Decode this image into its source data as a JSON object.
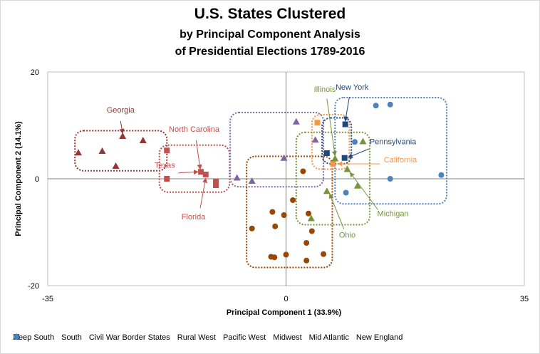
{
  "colors": {
    "deep_south": "#943634",
    "south": "#c0504d",
    "border": "#8064a2",
    "rural_west": "#974706",
    "pacific_west": "#f79646",
    "midwest": "#77933c",
    "mid_atlantic": "#1f497d",
    "new_england": "#4f81bd"
  },
  "chart_data": {
    "type": "scatter",
    "title": "U.S. States Clustered",
    "subtitle_line1": "by Principal Component Analysis",
    "subtitle_line2": "of Presidential Elections 1789-2016",
    "xlabel": "Principal Component 1 (33.9%)",
    "ylabel": "Principal Component 2 (14.1%)",
    "xlim": [
      -35,
      35
    ],
    "ylim": [
      -20,
      20
    ],
    "x_tick_labels": [
      "-35",
      "0",
      "35"
    ],
    "y_tick_labels": [
      "20",
      "0",
      "-20"
    ],
    "grid": false,
    "legend_position": "bottom",
    "series": [
      {
        "name": "Deep South",
        "marker": "triangle",
        "color_key": "deep_south",
        "points": [
          [
            -30.5,
            4.9
          ],
          [
            -27.0,
            5.2
          ],
          [
            -25.0,
            2.4
          ],
          [
            -24.0,
            8.0
          ],
          [
            -21.0,
            7.2
          ]
        ]
      },
      {
        "name": "South",
        "marker": "square",
        "color_key": "south",
        "points": [
          [
            -17.5,
            5.3
          ],
          [
            -17.5,
            0.0
          ],
          [
            -12.5,
            1.3
          ],
          [
            -11.8,
            0.8
          ],
          [
            -10.3,
            -0.5
          ],
          [
            -10.3,
            -1.2
          ]
        ]
      },
      {
        "name": "Civil War Border States",
        "marker": "triangle",
        "color_key": "border",
        "points": [
          [
            -7.2,
            0.2
          ],
          [
            -5.0,
            -0.4
          ],
          [
            -0.3,
            3.9
          ],
          [
            1.5,
            10.7
          ],
          [
            4.3,
            7.3
          ]
        ]
      },
      {
        "name": "Rural West",
        "marker": "circle",
        "color_key": "rural_west",
        "points": [
          [
            2.5,
            1.4
          ],
          [
            1.0,
            -4.0
          ],
          [
            -2.0,
            -6.2
          ],
          [
            -0.3,
            -6.8
          ],
          [
            3.3,
            -6.5
          ],
          [
            -5.0,
            -9.3
          ],
          [
            -1.6,
            -8.9
          ],
          [
            3.8,
            -9.8
          ],
          [
            3.0,
            -12.0
          ],
          [
            -2.2,
            -14.6
          ],
          [
            -1.7,
            -14.7
          ],
          [
            0.0,
            -14.2
          ],
          [
            5.5,
            -14.1
          ],
          [
            3.0,
            -15.3
          ]
        ]
      },
      {
        "name": "Pacific West",
        "marker": "square",
        "color_key": "pacific_west",
        "points": [
          [
            4.6,
            10.5
          ],
          [
            6.9,
            2.8
          ]
        ]
      },
      {
        "name": "Midwest",
        "marker": "triangle",
        "color_key": "midwest",
        "points": [
          [
            6.0,
            -2.3
          ],
          [
            7.2,
            3.8
          ],
          [
            9.0,
            1.8
          ],
          [
            10.5,
            -1.3
          ],
          [
            11.3,
            7.0
          ],
          [
            3.7,
            -7.4
          ]
        ]
      },
      {
        "name": "Mid Atlantic",
        "marker": "square",
        "color_key": "mid_atlantic",
        "points": [
          [
            6.0,
            4.8
          ],
          [
            8.7,
            10.2
          ],
          [
            8.6,
            3.9
          ]
        ]
      },
      {
        "name": "New England",
        "marker": "circle",
        "color_key": "new_england",
        "points": [
          [
            13.2,
            13.7
          ],
          [
            15.3,
            13.9
          ],
          [
            10.1,
            6.9
          ],
          [
            8.8,
            -2.6
          ],
          [
            15.3,
            0.0
          ],
          [
            22.8,
            0.7
          ]
        ]
      }
    ],
    "annotations": [
      {
        "text": "Georgia",
        "color_key": "deep_south",
        "tx": -24.3,
        "ty": 12.4,
        "ax": -24.3,
        "ay": 10.8,
        "px": -24.0,
        "py": 8.5
      },
      {
        "text": "North Carolina",
        "color_key": "south",
        "tx": -13.5,
        "ty": 8.8,
        "ax": -13.2,
        "ay": 7.2,
        "px": -12.6,
        "py": 1.8
      },
      {
        "text": "Texas",
        "color_key": "south",
        "tx": -17.8,
        "ty": 2.1,
        "ax": -15.8,
        "ay": 1.1,
        "px": -12.9,
        "py": 1.3
      },
      {
        "text": "Florida",
        "color_key": "south",
        "tx": -13.6,
        "ty": -7.6,
        "ax": -12.6,
        "ay": -5.5,
        "px": -11.8,
        "py": 0.1
      },
      {
        "text": "New York",
        "color_key": "mid_atlantic",
        "tx": 9.7,
        "ty": 16.7,
        "ax": 9.3,
        "ay": 15.3,
        "px": 8.7,
        "py": 10.8
      },
      {
        "text": "Illinois",
        "color_key": "midwest",
        "tx": 5.7,
        "ty": 16.3,
        "ax": 6.0,
        "ay": 15.0,
        "px": 7.2,
        "py": 4.3
      },
      {
        "text": "Pennsylvania",
        "color_key": "mid_atlantic",
        "tx": 15.7,
        "ty": 6.5,
        "ax": 12.2,
        "ay": 5.6,
        "px": 9.1,
        "py": 4.0
      },
      {
        "text": "California",
        "color_key": "pacific_west",
        "tx": 16.8,
        "ty": 3.1,
        "ax": 13.8,
        "ay": 2.8,
        "px": 7.6,
        "py": 2.8
      },
      {
        "text": "Michigan",
        "color_key": "midwest",
        "tx": 15.7,
        "ty": -7.0,
        "ax": 13.5,
        "ay": -5.8,
        "px": 9.4,
        "py": 1.2
      },
      {
        "text": "Ohio",
        "color_key": "midwest",
        "tx": 9.0,
        "ty": -11.0,
        "ax": 8.5,
        "ay": -9.4,
        "px": 6.4,
        "py": -2.8
      }
    ],
    "cluster_boxes": [
      {
        "color_key": "deep_south",
        "x0": -31.0,
        "x1": -17.5,
        "y0": 1.5,
        "y1": 9.0
      },
      {
        "color_key": "south",
        "x0": -18.6,
        "x1": -8.3,
        "y0": -2.5,
        "y1": 6.3
      },
      {
        "color_key": "border",
        "x0": -8.2,
        "x1": 5.5,
        "y0": -1.5,
        "y1": 12.4
      },
      {
        "color_key": "rural_west",
        "x0": -5.8,
        "x1": 6.8,
        "y0": -16.6,
        "y1": 4.2
      },
      {
        "color_key": "pacific_west",
        "x0": 3.8,
        "x1": 9.3,
        "y0": 1.8,
        "y1": 12.0
      },
      {
        "color_key": "midwest",
        "x0": 1.5,
        "x1": 12.3,
        "y0": -8.6,
        "y1": 8.7
      },
      {
        "color_key": "mid_atlantic",
        "x0": 5.3,
        "x1": 9.6,
        "y0": 2.8,
        "y1": 11.4
      },
      {
        "color_key": "new_england",
        "x0": 7.2,
        "x1": 23.6,
        "y0": -4.7,
        "y1": 15.2
      }
    ]
  }
}
